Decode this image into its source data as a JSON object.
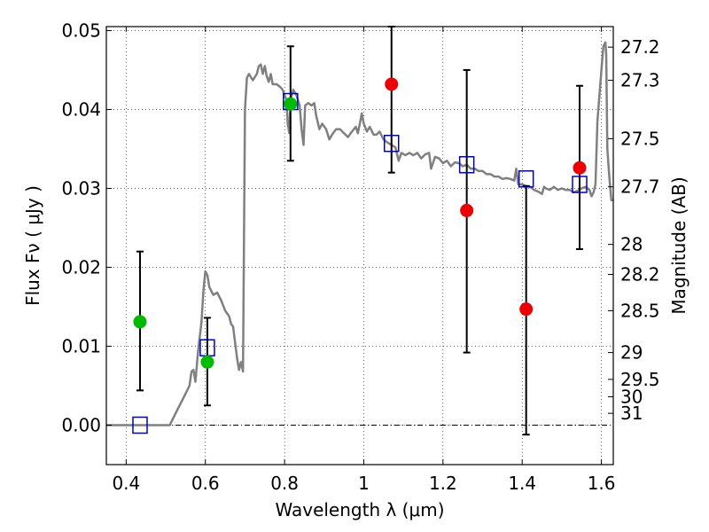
{
  "chart_data": {
    "type": "scatter",
    "x_axis": {
      "label": "Wavelength  λ (μm)",
      "lim": [
        0.35,
        1.63
      ],
      "ticks": [
        0.4,
        0.6,
        0.8,
        1.0,
        1.2,
        1.4,
        1.6
      ],
      "tick_labels": [
        "0.4",
        "0.6",
        "0.8",
        "1",
        "1.2",
        "1.4",
        "1.6"
      ]
    },
    "y_axis": {
      "label": "Flux  Fν ( μJy )",
      "lim": [
        -0.005,
        0.0505
      ],
      "ticks": [
        0.0,
        0.01,
        0.02,
        0.03,
        0.04,
        0.05
      ],
      "tick_labels": [
        "0.00",
        "0.01",
        "0.02",
        "0.03",
        "0.04",
        "0.05"
      ]
    },
    "y2_axis": {
      "label": "Magnitude (AB)",
      "ticks": [
        {
          "label": "27.2",
          "flux": 0.0479
        },
        {
          "label": "27.3",
          "flux": 0.0437
        },
        {
          "label": "27.5",
          "flux": 0.0363
        },
        {
          "label": "27.7",
          "flux": 0.0302
        },
        {
          "label": "28",
          "flux": 0.0229
        },
        {
          "label": "28.2",
          "flux": 0.0191
        },
        {
          "label": "28.5",
          "flux": 0.0145
        },
        {
          "label": "29",
          "flux": 0.0092
        },
        {
          "label": "29.5",
          "flux": 0.0058
        },
        {
          "label": "30",
          "flux": 0.0036
        },
        {
          "label": "31",
          "flux": 0.0015
        }
      ]
    },
    "grid": true,
    "model_spectrum": {
      "color": "#808080",
      "points": [
        [
          0.35,
          0.0
        ],
        [
          0.51,
          0.0
        ],
        [
          0.53,
          0.002
        ],
        [
          0.55,
          0.004
        ],
        [
          0.56,
          0.005
        ],
        [
          0.565,
          0.0068
        ],
        [
          0.57,
          0.007
        ],
        [
          0.575,
          0.0055
        ],
        [
          0.58,
          0.0085
        ],
        [
          0.583,
          0.01
        ],
        [
          0.59,
          0.013
        ],
        [
          0.595,
          0.017
        ],
        [
          0.6,
          0.0195
        ],
        [
          0.605,
          0.019
        ],
        [
          0.61,
          0.0175
        ],
        [
          0.62,
          0.0165
        ],
        [
          0.63,
          0.0168
        ],
        [
          0.64,
          0.0158
        ],
        [
          0.65,
          0.0145
        ],
        [
          0.66,
          0.0138
        ],
        [
          0.665,
          0.0128
        ],
        [
          0.67,
          0.0125
        ],
        [
          0.675,
          0.0105
        ],
        [
          0.68,
          0.0085
        ],
        [
          0.685,
          0.007
        ],
        [
          0.69,
          0.008
        ],
        [
          0.695,
          0.0068
        ],
        [
          0.7,
          0.04
        ],
        [
          0.705,
          0.044
        ],
        [
          0.71,
          0.0445
        ],
        [
          0.72,
          0.0437
        ],
        [
          0.73,
          0.0445
        ],
        [
          0.735,
          0.0455
        ],
        [
          0.74,
          0.0457
        ],
        [
          0.745,
          0.0445
        ],
        [
          0.75,
          0.0455
        ],
        [
          0.755,
          0.0442
        ],
        [
          0.76,
          0.0435
        ],
        [
          0.765,
          0.0445
        ],
        [
          0.77,
          0.0432
        ],
        [
          0.78,
          0.0432
        ],
        [
          0.79,
          0.0428
        ],
        [
          0.795,
          0.0425
        ],
        [
          0.8,
          0.0418
        ],
        [
          0.805,
          0.0412
        ],
        [
          0.808,
          0.0382
        ],
        [
          0.812,
          0.037
        ],
        [
          0.815,
          0.0412
        ],
        [
          0.822,
          0.0425
        ],
        [
          0.83,
          0.0418
        ],
        [
          0.838,
          0.0405
        ],
        [
          0.843,
          0.0375
        ],
        [
          0.848,
          0.0355
        ],
        [
          0.852,
          0.0405
        ],
        [
          0.86,
          0.0408
        ],
        [
          0.868,
          0.0405
        ],
        [
          0.875,
          0.0408
        ],
        [
          0.88,
          0.0392
        ],
        [
          0.888,
          0.0375
        ],
        [
          0.895,
          0.0382
        ],
        [
          0.905,
          0.0375
        ],
        [
          0.913,
          0.0362
        ],
        [
          0.92,
          0.0368
        ],
        [
          0.93,
          0.0375
        ],
        [
          0.94,
          0.0375
        ],
        [
          0.95,
          0.037
        ],
        [
          0.96,
          0.0365
        ],
        [
          0.97,
          0.0372
        ],
        [
          0.98,
          0.0378
        ],
        [
          0.985,
          0.037
        ],
        [
          0.99,
          0.0382
        ],
        [
          0.995,
          0.0395
        ],
        [
          1.0,
          0.0382
        ],
        [
          1.008,
          0.0372
        ],
        [
          1.015,
          0.0378
        ],
        [
          1.025,
          0.0368
        ],
        [
          1.032,
          0.0368
        ],
        [
          1.04,
          0.0372
        ],
        [
          1.05,
          0.0362
        ],
        [
          1.06,
          0.0358
        ],
        [
          1.07,
          0.0355
        ],
        [
          1.08,
          0.0352
        ],
        [
          1.088,
          0.0335
        ],
        [
          1.095,
          0.0345
        ],
        [
          1.105,
          0.0342
        ],
        [
          1.115,
          0.0345
        ],
        [
          1.125,
          0.0342
        ],
        [
          1.135,
          0.0345
        ],
        [
          1.145,
          0.0338
        ],
        [
          1.155,
          0.0343
        ],
        [
          1.165,
          0.0345
        ],
        [
          1.17,
          0.0325
        ],
        [
          1.18,
          0.034
        ],
        [
          1.19,
          0.0338
        ],
        [
          1.2,
          0.0332
        ],
        [
          1.21,
          0.0335
        ],
        [
          1.22,
          0.0328
        ],
        [
          1.23,
          0.0333
        ],
        [
          1.24,
          0.0332
        ],
        [
          1.25,
          0.0328
        ],
        [
          1.26,
          0.033
        ],
        [
          1.27,
          0.0325
        ],
        [
          1.28,
          0.0325
        ],
        [
          1.29,
          0.0322
        ],
        [
          1.3,
          0.0322
        ],
        [
          1.31,
          0.0318
        ],
        [
          1.32,
          0.0318
        ],
        [
          1.33,
          0.0315
        ],
        [
          1.34,
          0.0315
        ],
        [
          1.35,
          0.0312
        ],
        [
          1.36,
          0.0313
        ],
        [
          1.37,
          0.0312
        ],
        [
          1.38,
          0.031
        ],
        [
          1.385,
          0.0325
        ],
        [
          1.39,
          0.0305
        ],
        [
          1.4,
          0.0305
        ],
        [
          1.41,
          0.0303
        ],
        [
          1.42,
          0.0302
        ],
        [
          1.43,
          0.0298
        ],
        [
          1.44,
          0.0296
        ],
        [
          1.45,
          0.0293
        ],
        [
          1.455,
          0.0302
        ],
        [
          1.46,
          0.03
        ],
        [
          1.47,
          0.0298
        ],
        [
          1.48,
          0.0302
        ],
        [
          1.49,
          0.0298
        ],
        [
          1.5,
          0.03
        ],
        [
          1.51,
          0.0298
        ],
        [
          1.52,
          0.0298
        ],
        [
          1.53,
          0.0295
        ],
        [
          1.54,
          0.0297
        ],
        [
          1.55,
          0.03
        ],
        [
          1.56,
          0.0302
        ],
        [
          1.57,
          0.0298
        ],
        [
          1.575,
          0.029
        ],
        [
          1.58,
          0.0295
        ],
        [
          1.585,
          0.0305
        ],
        [
          1.59,
          0.0385
        ],
        [
          1.6,
          0.045
        ],
        [
          1.605,
          0.048
        ],
        [
          1.61,
          0.0485
        ],
        [
          1.612,
          0.047
        ],
        [
          1.615,
          0.035
        ],
        [
          1.62,
          0.0315
        ],
        [
          1.625,
          0.0285
        ],
        [
          1.63,
          0.0285
        ]
      ]
    },
    "squares": {
      "color": "#0000cc",
      "points": [
        [
          0.435,
          0.0
        ],
        [
          0.605,
          0.0098
        ],
        [
          0.815,
          0.041
        ],
        [
          1.07,
          0.0357
        ],
        [
          1.26,
          0.033
        ],
        [
          1.41,
          0.0312
        ],
        [
          1.545,
          0.0305
        ]
      ]
    },
    "green_points": {
      "color": "#00bb00",
      "points": [
        {
          "x": 0.435,
          "y": 0.0131,
          "ylo": 0.0044,
          "yhi": 0.022
        },
        {
          "x": 0.605,
          "y": 0.008,
          "ylo": 0.0025,
          "yhi": 0.0136
        },
        {
          "x": 0.815,
          "y": 0.0407,
          "ylo": 0.0335,
          "yhi": 0.048
        }
      ]
    },
    "red_points": {
      "color": "#ee0000",
      "points": [
        {
          "x": 1.07,
          "y": 0.0432,
          "ylo": 0.032,
          "yhi": 0.0505
        },
        {
          "x": 1.26,
          "y": 0.0272,
          "ylo": 0.0092,
          "yhi": 0.045
        },
        {
          "x": 1.41,
          "y": 0.0147,
          "ylo": -0.0012,
          "yhi": 0.0303
        },
        {
          "x": 1.545,
          "y": 0.0326,
          "ylo": 0.0223,
          "yhi": 0.043
        }
      ]
    }
  }
}
